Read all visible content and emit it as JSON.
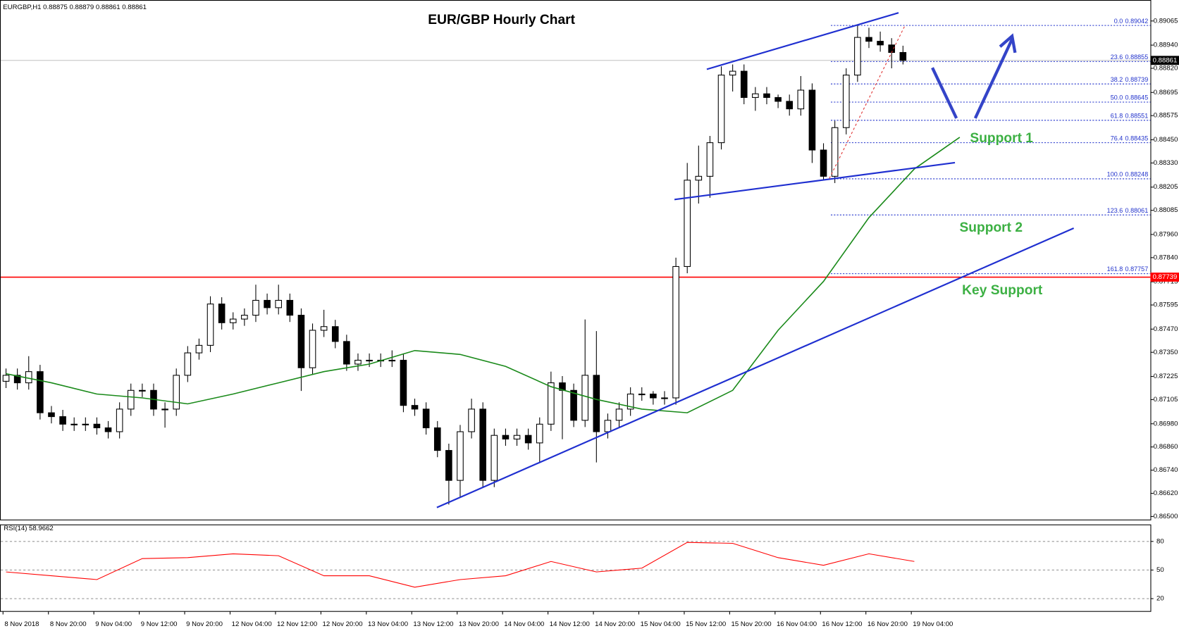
{
  "chart_data": [
    {
      "type": "candlestick",
      "title": "EUR/GBP Hourly Chart",
      "header": "EURGBP,H1  0.88875 0.88879 0.88861 0.88861",
      "x_labels": [
        "8 Nov 2018",
        "8 Nov 20:00",
        "9 Nov 04:00",
        "9 Nov 12:00",
        "9 Nov 20:00",
        "12 Nov 04:00",
        "12 Nov 12:00",
        "12 Nov 20:00",
        "13 Nov 04:00",
        "13 Nov 12:00",
        "13 Nov 20:00",
        "14 Nov 04:00",
        "14 Nov 12:00",
        "14 Nov 20:00",
        "15 Nov 04:00",
        "15 Nov 12:00",
        "15 Nov 20:00",
        "16 Nov 04:00",
        "16 Nov 12:00",
        "16 Nov 20:00",
        "19 Nov 04:00"
      ],
      "open": [
        0.872,
        0.87231,
        0.87192,
        0.8725,
        0.87037,
        0.87017,
        0.86978,
        0.86978,
        0.86978,
        0.86959,
        0.86939,
        0.87056,
        0.87153,
        0.87153,
        0.87056,
        0.87056,
        0.87231,
        0.87347,
        0.87386,
        0.876,
        0.87503,
        0.87522,
        0.87542,
        0.87619,
        0.87581,
        0.87619,
        0.87542,
        0.8727,
        0.87464,
        0.87483,
        0.87406,
        0.87289,
        0.87309,
        0.87309,
        0.87309,
        0.87309,
        0.87075,
        0.87056,
        0.86959,
        0.86842,
        0.86687,
        0.86939,
        0.87056,
        0.86687,
        0.8692,
        0.86901,
        0.8692,
        0.86881,
        0.86978,
        0.87192,
        0.87153,
        0.86998,
        0.87231,
        0.86939,
        0.86998,
        0.87056,
        0.87134,
        0.87134,
        0.87114,
        0.87114,
        0.87794,
        0.88241,
        0.88261,
        0.88435,
        0.88785,
        0.88805,
        0.88669,
        0.88688,
        0.88669,
        0.88649,
        0.8861,
        0.88707,
        0.88397,
        0.88261,
        0.88513,
        0.88785,
        0.8898,
        0.8896,
        0.88941,
        0.88902
      ],
      "high": [
        0.87266,
        0.87266,
        0.8733,
        0.87285,
        0.87072,
        0.87052,
        0.87013,
        0.87013,
        0.87013,
        0.86994,
        0.87091,
        0.87188,
        0.87188,
        0.87188,
        0.87091,
        0.87266,
        0.87382,
        0.87421,
        0.8764,
        0.87635,
        0.87557,
        0.87577,
        0.877,
        0.87654,
        0.877,
        0.87654,
        0.87577,
        0.87499,
        0.8757,
        0.87518,
        0.87441,
        0.87344,
        0.87344,
        0.87344,
        0.8736,
        0.87344,
        0.8711,
        0.87091,
        0.86994,
        0.86877,
        0.86974,
        0.8711,
        0.87091,
        0.86955,
        0.86955,
        0.86955,
        0.86955,
        0.87013,
        0.8725,
        0.87227,
        0.87188,
        0.8752,
        0.8746,
        0.87033,
        0.87091,
        0.87169,
        0.87169,
        0.87149,
        0.87149,
        0.8784,
        0.8833,
        0.8842,
        0.8847,
        0.8883,
        0.8884,
        0.8884,
        0.88723,
        0.88723,
        0.88684,
        0.88684,
        0.8878,
        0.88742,
        0.88432,
        0.88548,
        0.8882,
        0.89042,
        0.8903,
        0.8901,
        0.88976,
        0.88937
      ],
      "low": [
        0.87165,
        0.87157,
        0.87157,
        0.87002,
        0.86982,
        0.86943,
        0.86943,
        0.86943,
        0.86924,
        0.86904,
        0.86904,
        0.87021,
        0.87118,
        0.87021,
        0.8696,
        0.87021,
        0.87196,
        0.87312,
        0.87351,
        0.87468,
        0.87468,
        0.87487,
        0.87507,
        0.87546,
        0.87546,
        0.87507,
        0.8715,
        0.87235,
        0.87429,
        0.87371,
        0.87254,
        0.87254,
        0.87274,
        0.87274,
        0.87274,
        0.8704,
        0.87021,
        0.86924,
        0.86807,
        0.86562,
        0.866,
        0.86904,
        0.86652,
        0.86652,
        0.86866,
        0.86866,
        0.86846,
        0.8678,
        0.86943,
        0.869,
        0.86963,
        0.86963,
        0.8678,
        0.86904,
        0.86963,
        0.87021,
        0.87099,
        0.87079,
        0.87079,
        0.87079,
        0.87759,
        0.8812,
        0.8815,
        0.884,
        0.887,
        0.88634,
        0.886,
        0.88634,
        0.88614,
        0.88575,
        0.88575,
        0.8833,
        0.8824,
        0.88226,
        0.88478,
        0.8875,
        0.88925,
        0.88906,
        0.8882,
        0.8884
      ],
      "close": [
        0.87231,
        0.87192,
        0.8725,
        0.87037,
        0.87017,
        0.86978,
        0.86978,
        0.86978,
        0.86959,
        0.86939,
        0.87056,
        0.87153,
        0.87153,
        0.87056,
        0.87056,
        0.87231,
        0.87347,
        0.87386,
        0.876,
        0.87503,
        0.87522,
        0.87542,
        0.87619,
        0.87581,
        0.87619,
        0.87542,
        0.8727,
        0.87464,
        0.87483,
        0.87406,
        0.87289,
        0.87309,
        0.87309,
        0.87309,
        0.87309,
        0.87075,
        0.87056,
        0.86959,
        0.86842,
        0.86687,
        0.86939,
        0.87056,
        0.86687,
        0.8692,
        0.86901,
        0.8692,
        0.86881,
        0.86978,
        0.87192,
        0.87153,
        0.86998,
        0.87231,
        0.86939,
        0.86998,
        0.87056,
        0.87134,
        0.87134,
        0.87114,
        0.87114,
        0.87794,
        0.88241,
        0.88261,
        0.88435,
        0.88785,
        0.88805,
        0.88669,
        0.88688,
        0.88669,
        0.88649,
        0.8861,
        0.88707,
        0.88397,
        0.88261,
        0.88513,
        0.88785,
        0.8898,
        0.8896,
        0.88941,
        0.88902,
        0.88861
      ],
      "up_color": "#ffffff",
      "down_color": "#000000",
      "ylim": [
        0.86492,
        0.89158
      ],
      "yticks": [
        {
          "value": 0.89065,
          "label": "0.89065"
        },
        {
          "value": 0.8894,
          "label": "0.88940"
        },
        {
          "value": 0.8882,
          "label": "0.88820"
        },
        {
          "value": 0.88695,
          "label": "0.88695"
        },
        {
          "value": 0.88575,
          "label": "0.88575"
        },
        {
          "value": 0.8845,
          "label": "0.88450"
        },
        {
          "value": 0.8833,
          "label": "0.88330"
        },
        {
          "value": 0.88205,
          "label": "0.88205"
        },
        {
          "value": 0.88085,
          "label": "0.88085"
        },
        {
          "value": 0.8796,
          "label": "0.87960"
        },
        {
          "value": 0.8784,
          "label": "0.87840"
        },
        {
          "value": 0.87715,
          "label": "0.87715"
        },
        {
          "value": 0.87595,
          "label": "0.87595"
        },
        {
          "value": 0.8747,
          "label": "0.87470"
        },
        {
          "value": 0.8735,
          "label": "0.87350"
        },
        {
          "value": 0.87225,
          "label": "0.87225"
        },
        {
          "value": 0.87105,
          "label": "0.87105"
        },
        {
          "value": 0.8698,
          "label": "0.86980"
        },
        {
          "value": 0.8686,
          "label": "0.86860"
        },
        {
          "value": 0.8674,
          "label": "0.86740"
        },
        {
          "value": 0.8662,
          "label": "0.86620"
        },
        {
          "value": 0.865,
          "label": "0.86500"
        }
      ],
      "ma": {
        "color": "#1a8a1a",
        "values": [
          0.87239,
          0.87192,
          0.87134,
          0.87114,
          0.87083,
          0.87134,
          0.87192,
          0.8725,
          0.87289,
          0.87359,
          0.87339,
          0.87277,
          0.87172,
          0.87106,
          0.87056,
          0.87037,
          0.87153,
          0.87464,
          0.87717,
          0.88047,
          0.88299,
          0.88463
        ]
      },
      "fib": {
        "color": "#2233cc",
        "levels": [
          "0.0",
          "23.6",
          "38.2",
          "50.0",
          "61.8",
          "76.4",
          "100.0",
          "123.6",
          "161.8"
        ],
        "values": [
          0.89042,
          0.88855,
          0.88739,
          0.88645,
          0.88551,
          0.88435,
          0.88248,
          0.88061,
          0.87757
        ]
      },
      "current_price": 0.88861,
      "support_line": {
        "value": 0.87739,
        "color": "#ff0000"
      },
      "annotations": [
        "Support 1",
        "Support 2",
        "Key Support"
      ],
      "annotation_color": "#3cb043"
    },
    {
      "type": "line",
      "title": "RSI(14) 58.9662",
      "color": "#ff0000",
      "values": [
        48,
        44,
        40,
        62,
        63,
        67,
        65,
        44,
        44,
        32,
        40,
        44,
        59,
        48,
        52,
        79,
        78,
        63,
        55,
        67,
        59
      ],
      "ylim": [
        6.6,
        97.4
      ],
      "yticks": [
        80,
        50,
        20
      ]
    }
  ]
}
